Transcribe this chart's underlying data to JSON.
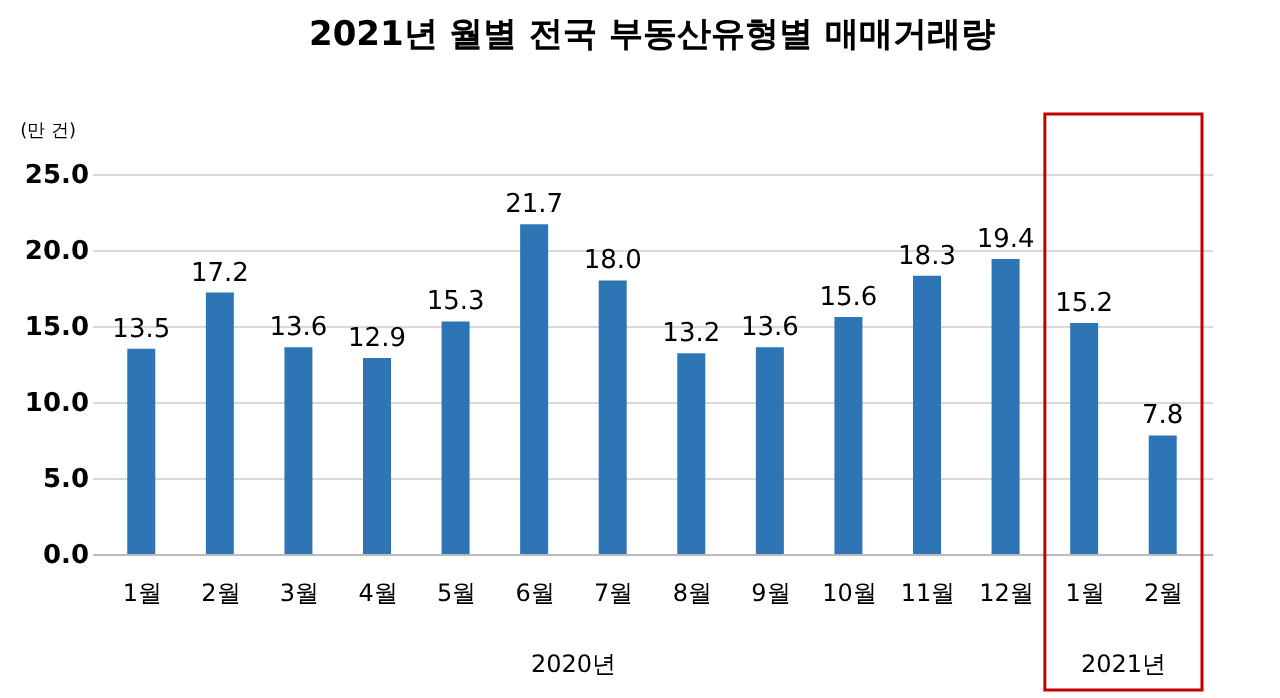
{
  "chart_data": {
    "type": "bar",
    "title": "2021년 월별 전국 부동산유형별 매매거래량",
    "ylabel": "(만 건)",
    "categories": [
      "1월",
      "2월",
      "3월",
      "4월",
      "5월",
      "6월",
      "7월",
      "8월",
      "9월",
      "10월",
      "11월",
      "12월",
      "1월",
      "2월"
    ],
    "values": [
      13.5,
      17.2,
      13.6,
      12.9,
      15.3,
      21.7,
      18.0,
      13.2,
      13.6,
      15.6,
      18.3,
      19.4,
      15.2,
      7.8
    ],
    "value_labels": [
      "13.5",
      "17.2",
      "13.6",
      "12.9",
      "15.3",
      "21.7",
      "18.0",
      "13.2",
      "13.6",
      "15.6",
      "18.3",
      "19.4",
      "15.2",
      "7.8"
    ],
    "color": "#2e75b6",
    "ylim": [
      0,
      25
    ],
    "yticks": [
      {
        "value": 0,
        "label": "0.0"
      },
      {
        "value": 5,
        "label": "5.0"
      },
      {
        "value": 10,
        "label": "10.0"
      },
      {
        "value": 15,
        "label": "15.0"
      },
      {
        "value": 20,
        "label": "20.0"
      },
      {
        "value": 25,
        "label": "25.0"
      }
    ],
    "grid": "y",
    "annotations": [
      "2020년",
      "2021년"
    ]
  }
}
